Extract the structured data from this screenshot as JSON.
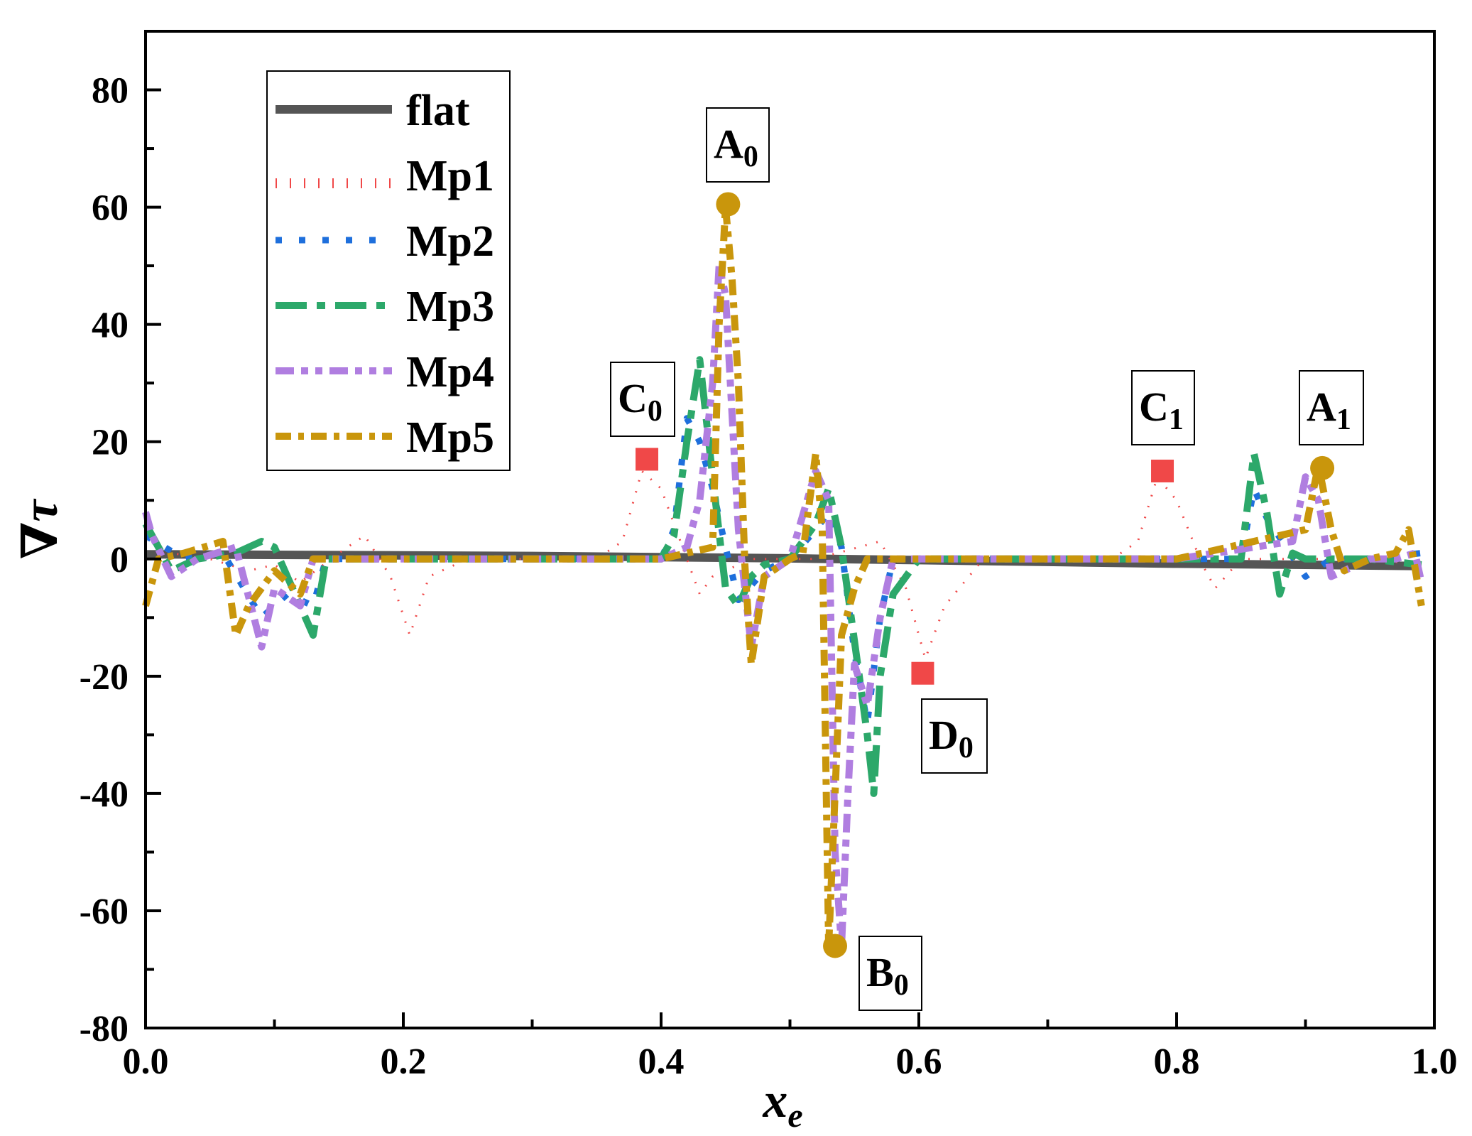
{
  "chart_data": {
    "type": "line",
    "title": "",
    "xlabel": "x",
    "xlabel_sub": "e",
    "ylabel": "∇τ",
    "xlim": [
      0.0,
      1.0
    ],
    "ylim": [
      -80,
      90
    ],
    "x_ticks": [
      0.0,
      0.2,
      0.4,
      0.6,
      0.8,
      1.0
    ],
    "x_tick_labels": [
      "0.0",
      "0.2",
      "0.4",
      "0.6",
      "0.8",
      "1.0"
    ],
    "y_ticks": [
      -80,
      -60,
      -40,
      -20,
      0,
      20,
      40,
      60,
      80
    ],
    "y_tick_labels": [
      "-80",
      "-60",
      "-40",
      "-20",
      "0",
      "20",
      "40",
      "60",
      "80"
    ],
    "grid": false,
    "legend_position": "top-left",
    "series": [
      {
        "name": "flat",
        "color": "#555555",
        "style": "solid",
        "x": [
          0.0,
          0.1,
          0.2,
          0.3,
          0.4,
          0.5,
          0.6,
          0.7,
          0.8,
          0.9,
          0.99
        ],
        "y": [
          0.8,
          0.7,
          0.6,
          0.5,
          0.3,
          0.1,
          -0.2,
          -0.5,
          -0.8,
          -1.0,
          -1.2
        ]
      },
      {
        "name": "Mp1",
        "color": "#f04848",
        "style": "dotted-thin",
        "x": [
          0.0,
          0.02,
          0.05,
          0.08,
          0.1,
          0.12,
          0.15,
          0.17,
          0.19,
          0.205,
          0.22,
          0.25,
          0.3,
          0.35,
          0.37,
          0.385,
          0.4,
          0.42,
          0.43,
          0.44,
          0.47,
          0.52,
          0.57,
          0.59,
          0.605,
          0.62,
          0.65,
          0.7,
          0.75,
          0.77,
          0.785,
          0.8,
          0.82,
          0.83,
          0.85,
          0.9,
          0.95,
          0.99
        ],
        "y": [
          3,
          1,
          0,
          -2,
          -1,
          -4,
          1,
          4,
          -3,
          -13,
          -3,
          0,
          0,
          0,
          3,
          15,
          12,
          0,
          -6,
          -3,
          0,
          0,
          3,
          -5,
          -17,
          -8,
          0,
          0,
          0,
          3,
          14,
          10,
          -1,
          -5,
          0,
          0,
          0,
          -1
        ]
      },
      {
        "name": "Mp2",
        "color": "#1e6fdc",
        "style": "dotted",
        "x": [
          0.0,
          0.03,
          0.06,
          0.09,
          0.11,
          0.13,
          0.14,
          0.2,
          0.3,
          0.4,
          0.41,
          0.42,
          0.43,
          0.44,
          0.45,
          0.46,
          0.48,
          0.5,
          0.52,
          0.53,
          0.54,
          0.55,
          0.56,
          0.57,
          0.58,
          0.6,
          0.7,
          0.8,
          0.85,
          0.86,
          0.87,
          0.9,
          0.92,
          0.95,
          0.99
        ],
        "y": [
          4,
          0,
          1,
          -10,
          -6,
          -8,
          0,
          0,
          0,
          0,
          5,
          24,
          20,
          12,
          2,
          -7,
          -2,
          0,
          5,
          8,
          2,
          -16,
          -28,
          -10,
          0,
          0,
          0,
          0,
          0,
          12,
          7,
          -3,
          0,
          0,
          1
        ]
      },
      {
        "name": "Mp3",
        "color": "#2ca86a",
        "style": "dashdot-long",
        "x": [
          0.0,
          0.01,
          0.02,
          0.04,
          0.07,
          0.09,
          0.1,
          0.12,
          0.13,
          0.14,
          0.2,
          0.3,
          0.4,
          0.41,
          0.42,
          0.43,
          0.44,
          0.45,
          0.46,
          0.47,
          0.48,
          0.5,
          0.52,
          0.53,
          0.54,
          0.55,
          0.56,
          0.565,
          0.57,
          0.58,
          0.6,
          0.7,
          0.8,
          0.85,
          0.86,
          0.87,
          0.88,
          0.89,
          0.9,
          0.95,
          0.99
        ],
        "y": [
          6,
          2,
          -2,
          0,
          1,
          3,
          2,
          -8,
          -13,
          0,
          0,
          0,
          0,
          4,
          20,
          34,
          14,
          -5,
          -8,
          -3,
          -1,
          0,
          6,
          12,
          2,
          -14,
          -30,
          -40,
          -20,
          -6,
          0,
          0,
          0,
          0,
          18,
          8,
          -6,
          1,
          0,
          0,
          -1
        ]
      },
      {
        "name": "Mp4",
        "color": "#b07ee0",
        "style": "dashdotdot",
        "x": [
          0.0,
          0.005,
          0.02,
          0.04,
          0.07,
          0.09,
          0.1,
          0.12,
          0.13,
          0.15,
          0.2,
          0.3,
          0.4,
          0.42,
          0.43,
          0.44,
          0.445,
          0.45,
          0.455,
          0.46,
          0.47,
          0.48,
          0.5,
          0.52,
          0.53,
          0.535,
          0.54,
          0.545,
          0.55,
          0.56,
          0.57,
          0.58,
          0.6,
          0.7,
          0.8,
          0.89,
          0.9,
          0.91,
          0.92,
          0.95,
          0.97,
          0.985,
          0.99
        ],
        "y": [
          8,
          4,
          -3,
          0,
          2,
          -15,
          -5,
          -8,
          0,
          0,
          0,
          0,
          0,
          2,
          10,
          30,
          50,
          45,
          25,
          5,
          -15,
          -3,
          0,
          15,
          10,
          -50,
          -66,
          -40,
          -18,
          -25,
          -10,
          0,
          0,
          0,
          0,
          3,
          14,
          10,
          -3,
          0,
          0,
          1,
          -4
        ]
      },
      {
        "name": "Mp5",
        "color": "#c9960c",
        "style": "dashdot",
        "x": [
          0.0,
          0.01,
          0.03,
          0.06,
          0.07,
          0.08,
          0.09,
          0.1,
          0.12,
          0.13,
          0.2,
          0.3,
          0.4,
          0.44,
          0.445,
          0.45,
          0.455,
          0.46,
          0.465,
          0.47,
          0.48,
          0.5,
          0.51,
          0.52,
          0.525,
          0.53,
          0.535,
          0.54,
          0.55,
          0.56,
          0.6,
          0.7,
          0.8,
          0.9,
          0.91,
          0.92,
          0.93,
          0.95,
          0.97,
          0.98,
          0.99
        ],
        "y": [
          -8,
          0,
          1,
          3,
          -13,
          -8,
          -5,
          -2,
          -6,
          0,
          0,
          0,
          0,
          2,
          40,
          60,
          48,
          30,
          -1,
          -18,
          -3,
          0,
          1,
          18,
          5,
          -66,
          -40,
          -13,
          -5,
          0,
          0,
          0,
          0,
          5,
          16,
          5,
          -2,
          0,
          1,
          5,
          -8
        ]
      }
    ],
    "annotations": [
      {
        "label": "A",
        "sub": "0",
        "x": 0.452,
        "y": 60.5,
        "marker": "circle",
        "color": "#c9960c"
      },
      {
        "label": "B",
        "sub": "0",
        "x": 0.535,
        "y": -66,
        "marker": "circle",
        "color": "#c9960c"
      },
      {
        "label": "C",
        "sub": "0",
        "x": 0.389,
        "y": 17,
        "marker": "square",
        "color": "#f04848"
      },
      {
        "label": "D",
        "sub": "0",
        "x": 0.603,
        "y": -19.5,
        "marker": "square",
        "color": "#f04848"
      },
      {
        "label": "C",
        "sub": "1",
        "x": 0.789,
        "y": 15,
        "marker": "square",
        "color": "#f04848"
      },
      {
        "label": "A",
        "sub": "1",
        "x": 0.913,
        "y": 15.5,
        "marker": "circle",
        "color": "#c9960c"
      }
    ]
  }
}
